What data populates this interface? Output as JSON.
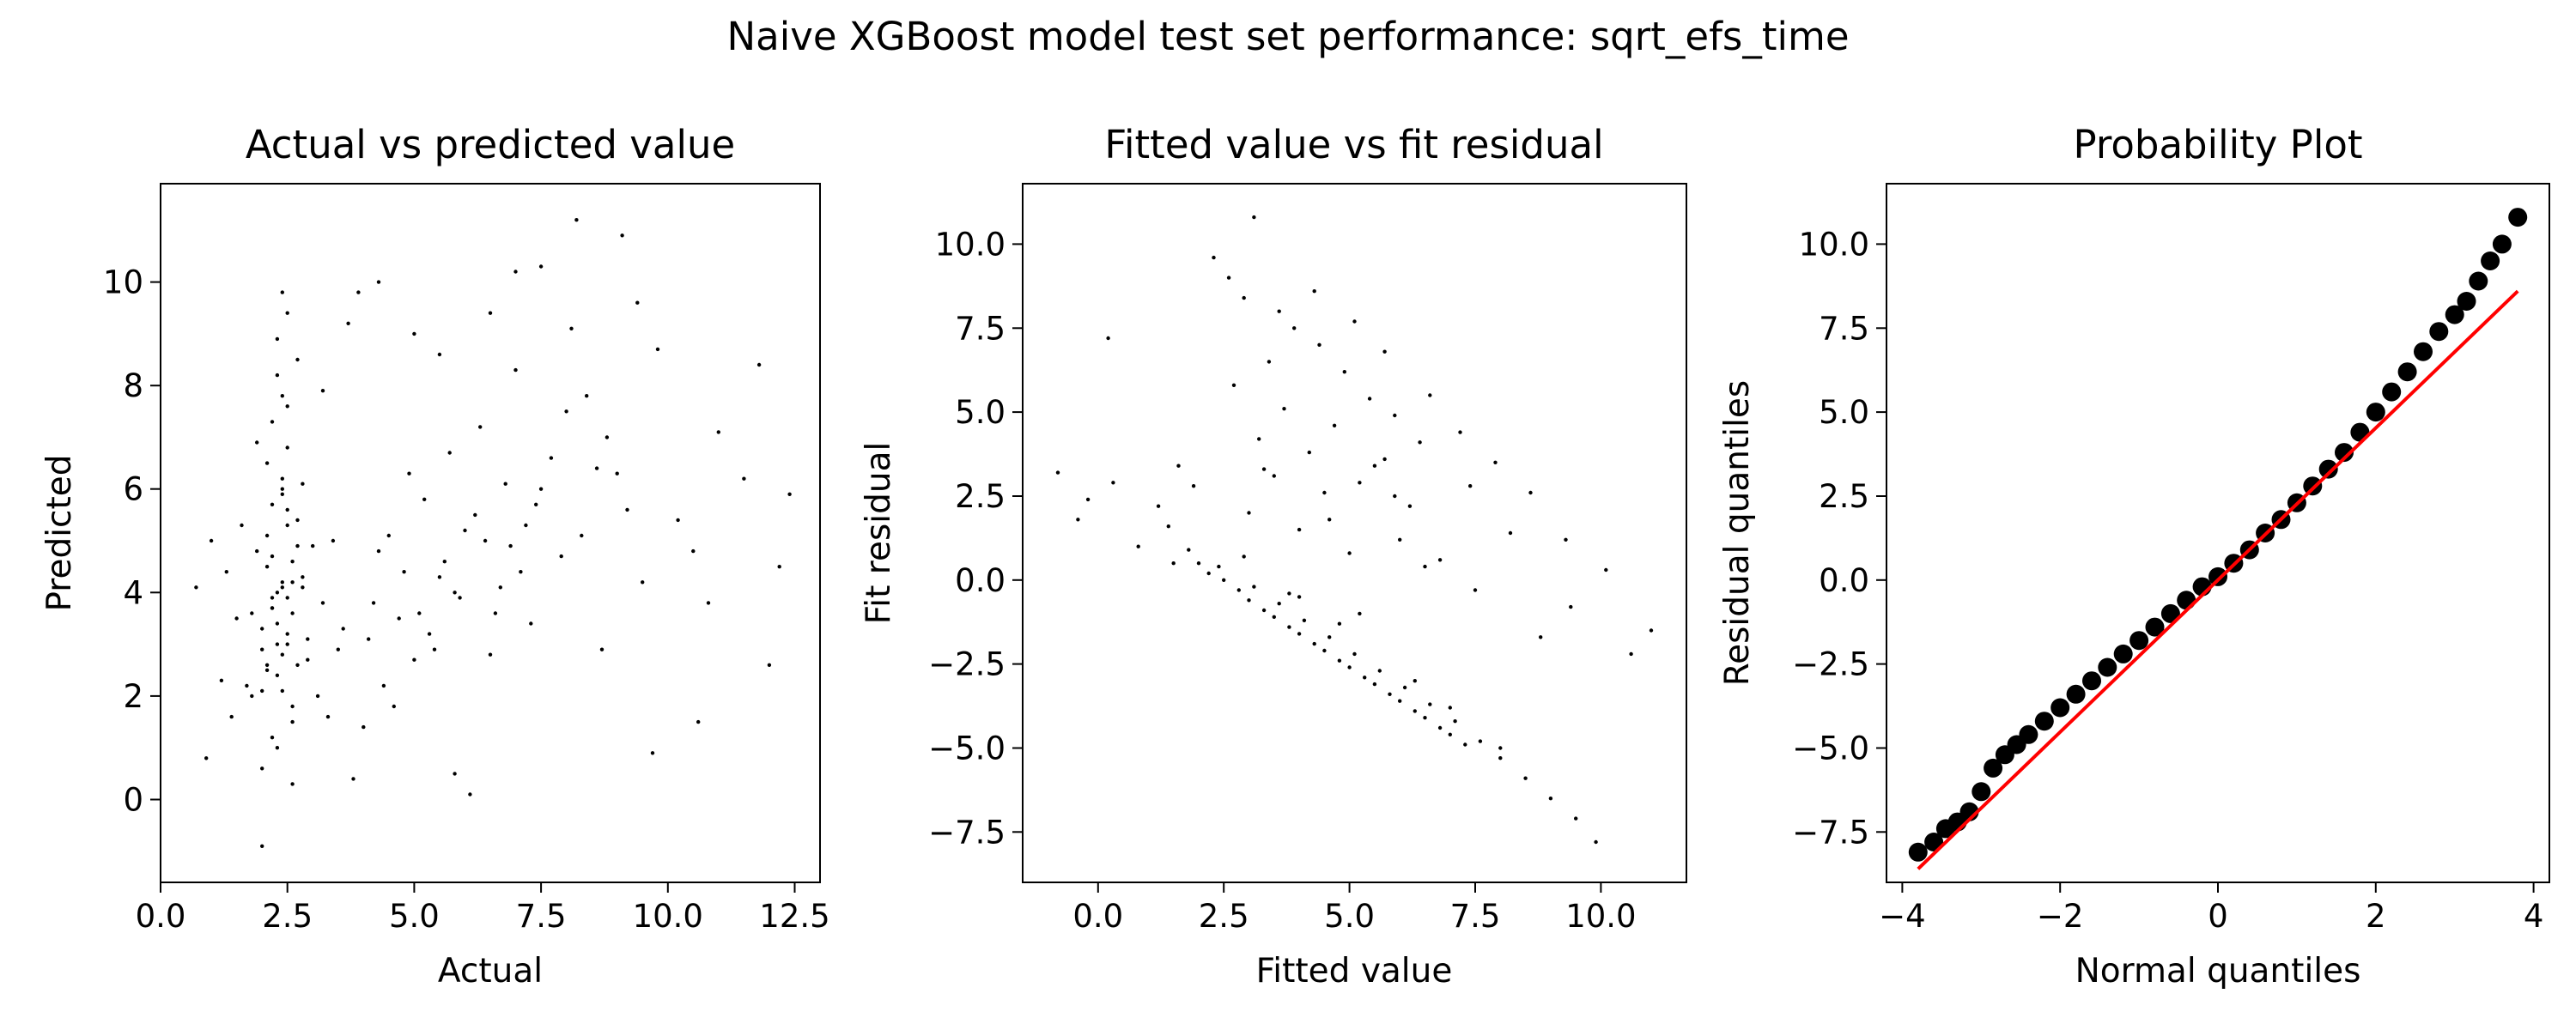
{
  "figure": {
    "title": "Naive XGBoost model test set performance: sqrt_efs_time"
  },
  "colors": {
    "points": "#000000",
    "reference_line": "#ff0000",
    "axes": "#000000"
  },
  "chart_data": [
    {
      "type": "scatter",
      "title": "Actual vs predicted value",
      "xlabel": "Actual",
      "ylabel": "Predicted",
      "xlim": [
        0.0,
        13.0
      ],
      "ylim": [
        -1.6,
        11.9
      ],
      "xticks": [
        0.0,
        2.5,
        5.0,
        7.5,
        10.0,
        12.5
      ],
      "xtick_labels": [
        "0.0",
        "2.5",
        "5.0",
        "7.5",
        "10.0",
        "12.5"
      ],
      "yticks": [
        0,
        2,
        4,
        6,
        8,
        10
      ],
      "ytick_labels": [
        "0",
        "2",
        "4",
        "6",
        "8",
        "10"
      ],
      "grid": false,
      "series": [
        {
          "x": [
            2.3,
            2.5,
            2.1,
            2.6,
            2.4,
            2.2,
            2.8,
            2.0,
            2.5,
            2.3,
            1.9,
            2.7,
            2.4,
            2.2,
            2.6,
            2.1,
            2.9,
            2.4,
            2.3,
            2.5,
            1.8,
            3.0,
            2.2,
            2.6,
            2.4,
            2.0,
            2.7,
            2.3,
            2.5,
            2.1,
            3.2,
            1.7,
            2.4,
            2.8,
            2.2,
            1.5,
            3.4,
            2.3,
            2.0,
            2.9,
            2.5,
            1.3,
            3.6,
            2.6,
            2.2,
            2.4,
            1.9,
            3.1,
            2.5,
            2.3,
            2.2,
            2.6,
            2.8,
            2.1,
            2.4,
            2.0,
            2.7,
            1.6,
            3.3,
            2.5,
            4.2,
            4.8,
            5.3,
            4.5,
            5.0,
            5.6,
            4.4,
            5.2,
            4.7,
            5.8,
            4.9,
            5.4,
            4.3,
            5.1,
            6.0,
            4.6,
            5.5,
            5.7,
            4.1,
            6.2,
            5.9,
            6.4,
            6.8,
            7.1,
            6.3,
            6.6,
            7.4,
            6.9,
            7.7,
            6.5,
            7.2,
            8.0,
            6.7,
            7.5,
            8.3,
            7.0,
            7.9,
            8.6,
            7.3,
            8.8,
            9.2,
            8.1,
            9.5,
            8.4,
            9.0,
            9.8,
            10.2,
            8.7,
            9.4,
            10.5,
            11.0,
            9.1,
            10.8,
            11.5,
            12.0,
            12.4,
            11.8,
            10.6,
            9.7,
            12.2,
            1.0,
            0.7,
            1.2,
            1.4,
            0.9,
            3.8,
            3.5,
            4.0,
            3.9,
            3.7,
            5.0,
            5.5,
            6.1,
            6.5,
            7.0,
            7.5,
            8.2,
            3.2,
            4.3,
            5.8,
            2.4,
            2.3,
            2.6,
            2.2,
            2.5,
            2.1,
            2.7,
            2.0,
            2.4,
            1.8
          ],
          "y": [
            4.0,
            3.2,
            5.1,
            4.6,
            2.8,
            3.7,
            4.3,
            2.1,
            5.6,
            3.4,
            4.8,
            2.6,
            6.2,
            3.9,
            1.8,
            4.5,
            3.1,
            5.9,
            2.4,
            6.8,
            3.6,
            4.9,
            7.3,
            1.5,
            4.2,
            2.9,
            5.4,
            8.2,
            3.0,
            6.5,
            3.8,
            2.2,
            7.8,
            4.1,
            1.2,
            3.5,
            5.0,
            8.9,
            0.6,
            2.7,
            9.4,
            4.4,
            3.3,
            0.3,
            5.7,
            9.8,
            6.9,
            2.0,
            7.6,
            1.0,
            4.7,
            3.6,
            6.1,
            2.5,
            4.1,
            -0.9,
            8.5,
            5.3,
            1.6,
            3.9,
            3.8,
            4.4,
            3.2,
            5.1,
            2.7,
            4.6,
            2.2,
            5.8,
            3.5,
            4.0,
            6.3,
            2.9,
            4.8,
            3.6,
            5.2,
            1.8,
            4.3,
            6.7,
            3.1,
            5.5,
            3.9,
            5.0,
            6.1,
            4.4,
            7.2,
            3.6,
            5.7,
            4.9,
            6.6,
            2.8,
            5.3,
            7.5,
            4.1,
            6.0,
            5.1,
            8.3,
            4.7,
            6.4,
            3.4,
            7.0,
            5.6,
            9.1,
            4.2,
            7.8,
            6.3,
            8.7,
            5.4,
            2.9,
            9.6,
            4.8,
            7.1,
            10.9,
            3.8,
            6.2,
            2.6,
            5.9,
            8.4,
            1.5,
            0.9,
            4.5,
            5.0,
            4.1,
            2.3,
            1.6,
            0.8,
            0.4,
            2.9,
            1.4,
            9.8,
            9.2,
            9.0,
            8.6,
            0.1,
            9.4,
            10.2,
            10.3,
            11.2,
            7.9,
            10.0,
            0.5,
            2.1,
            3.0,
            4.2,
            3.7,
            5.3,
            2.6,
            4.9,
            3.3,
            6.0,
            2.0
          ]
        }
      ]
    },
    {
      "type": "scatter",
      "title": "Fitted value vs fit residual",
      "xlabel": "Fitted value",
      "ylabel": "Fit residual",
      "xlim": [
        -1.5,
        11.7
      ],
      "ylim": [
        -9.0,
        11.8
      ],
      "xticks": [
        0.0,
        2.5,
        5.0,
        7.5,
        10.0
      ],
      "xtick_labels": [
        "0.0",
        "2.5",
        "5.0",
        "7.5",
        "10.0"
      ],
      "yticks": [
        -7.5,
        -5.0,
        -2.5,
        0.0,
        2.5,
        5.0,
        7.5,
        10.0
      ],
      "ytick_labels": [
        "−7.5",
        "−5.0",
        "−2.5",
        "0.0",
        "2.5",
        "5.0",
        "7.5",
        "10.0"
      ],
      "grid": false,
      "series": [
        {
          "x": [
            2.0,
            2.5,
            3.0,
            3.5,
            4.0,
            4.5,
            5.0,
            5.5,
            6.0,
            6.5,
            7.0,
            2.2,
            2.8,
            3.3,
            3.8,
            4.3,
            4.8,
            5.3,
            5.8,
            6.3,
            6.8,
            7.3,
            1.8,
            2.4,
            3.1,
            3.6,
            4.1,
            4.6,
            5.1,
            5.6,
            6.1,
            6.6,
            7.1,
            7.6,
            8.0,
            8.5,
            9.0,
            9.5,
            9.9,
            3.0,
            3.5,
            4.0,
            4.5,
            5.0,
            5.5,
            6.0,
            6.5,
            3.2,
            3.7,
            4.2,
            4.7,
            5.2,
            5.7,
            6.2,
            2.7,
            3.4,
            4.4,
            5.4,
            6.4,
            7.4,
            3.9,
            4.9,
            5.9,
            2.9,
            3.3,
            4.0,
            4.6,
            5.2,
            5.9,
            6.8,
            7.5,
            8.2,
            8.8,
            9.4,
            10.1,
            10.6,
            11.0,
            2.6,
            3.1,
            2.3,
            1.9,
            1.6,
            1.4,
            1.2,
            0.8,
            0.3,
            -0.2,
            -0.8,
            -0.4,
            0.2,
            1.5,
            3.6,
            4.3,
            5.1,
            5.7,
            6.6,
            7.2,
            7.9,
            8.6,
            9.3,
            4.8,
            3.8,
            2.9,
            6.3,
            7.0,
            8.0
          ],
          "y": [
            0.5,
            0.0,
            -0.6,
            -1.1,
            -1.6,
            -2.1,
            -2.6,
            -3.1,
            -3.6,
            -4.1,
            -4.6,
            0.2,
            -0.3,
            -0.9,
            -1.4,
            -1.9,
            -2.4,
            -2.9,
            -3.4,
            -3.9,
            -4.4,
            -4.9,
            0.9,
            0.4,
            -0.2,
            -0.7,
            -1.2,
            -1.7,
            -2.2,
            -2.7,
            -3.2,
            -3.7,
            -4.2,
            -4.8,
            -5.3,
            -5.9,
            -6.5,
            -7.1,
            -7.8,
            2.0,
            3.1,
            1.5,
            2.6,
            0.8,
            3.4,
            1.2,
            0.4,
            4.2,
            5.1,
            3.8,
            4.6,
            2.9,
            3.6,
            2.2,
            5.8,
            6.5,
            7.0,
            5.4,
            4.1,
            2.8,
            7.5,
            6.2,
            4.9,
            8.4,
            3.3,
            -0.5,
            1.8,
            -1.0,
            2.5,
            0.6,
            -0.3,
            1.4,
            -1.7,
            -0.8,
            0.3,
            -2.2,
            -1.5,
            9.0,
            10.8,
            9.6,
            2.8,
            3.4,
            1.6,
            2.2,
            1.0,
            2.9,
            2.4,
            3.2,
            1.8,
            7.2,
            0.5,
            8.0,
            8.6,
            7.7,
            6.8,
            5.5,
            4.4,
            3.5,
            2.6,
            1.2,
            -1.3,
            -0.4,
            0.7,
            -3.0,
            -3.8,
            -5.0
          ]
        }
      ]
    },
    {
      "type": "scatter",
      "title": "Probability Plot",
      "xlabel": "Normal quantiles",
      "ylabel": "Residual quantiles",
      "xlim": [
        -4.2,
        4.2
      ],
      "ylim": [
        -9.0,
        11.8
      ],
      "xticks": [
        -4,
        -2,
        0,
        2,
        4
      ],
      "xtick_labels": [
        "−4",
        "−2",
        "0",
        "2",
        "4"
      ],
      "yticks": [
        -7.5,
        -5.0,
        -2.5,
        0.0,
        2.5,
        5.0,
        7.5,
        10.0
      ],
      "ytick_labels": [
        "−7.5",
        "−5.0",
        "−2.5",
        "0.0",
        "2.5",
        "5.0",
        "7.5",
        "10.0"
      ],
      "grid": false,
      "series": [
        {
          "x": [
            -3.8,
            -3.6,
            -3.45,
            -3.3,
            -3.15,
            -3.0,
            -2.85,
            -2.7,
            -2.55,
            -2.4,
            -2.2,
            -2.0,
            -1.8,
            -1.6,
            -1.4,
            -1.2,
            -1.0,
            -0.8,
            -0.6,
            -0.4,
            -0.2,
            0.0,
            0.2,
            0.4,
            0.6,
            0.8,
            1.0,
            1.2,
            1.4,
            1.6,
            1.8,
            2.0,
            2.2,
            2.4,
            2.6,
            2.8,
            3.0,
            3.15,
            3.3,
            3.45,
            3.6,
            3.8
          ],
          "y": [
            -8.1,
            -7.8,
            -7.4,
            -7.2,
            -6.9,
            -6.3,
            -5.6,
            -5.2,
            -4.9,
            -4.6,
            -4.2,
            -3.8,
            -3.4,
            -3.0,
            -2.6,
            -2.2,
            -1.8,
            -1.4,
            -1.0,
            -0.6,
            -0.2,
            0.1,
            0.5,
            0.9,
            1.4,
            1.8,
            2.3,
            2.8,
            3.3,
            3.8,
            4.4,
            5.0,
            5.6,
            6.2,
            6.8,
            7.4,
            7.9,
            8.3,
            8.9,
            9.5,
            10.0,
            10.8
          ]
        }
      ],
      "reference_line": {
        "x": [
          -3.8,
          3.8
        ],
        "y": [
          -8.6,
          8.6
        ]
      }
    }
  ]
}
